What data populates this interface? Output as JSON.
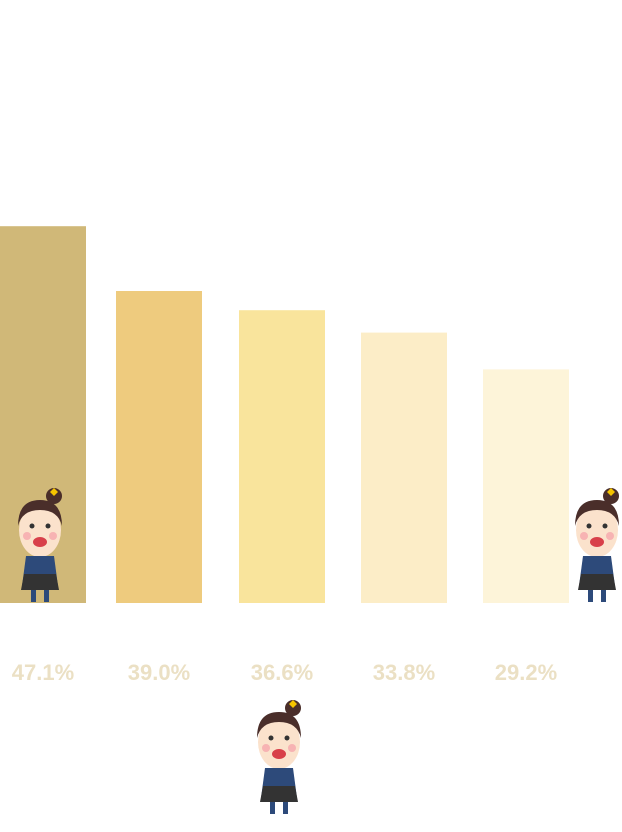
{
  "chart_data": {
    "type": "bar",
    "values": [
      47.1,
      39.0,
      36.6,
      33.8,
      29.2
    ],
    "value_labels": [
      "47.1%",
      "39.0%",
      "36.6%",
      "33.8%",
      "29.2%"
    ],
    "colors": [
      "#d0b878",
      "#eecb7e",
      "#f9e49c",
      "#fcedc7",
      "#fdf4d9"
    ]
  }
}
